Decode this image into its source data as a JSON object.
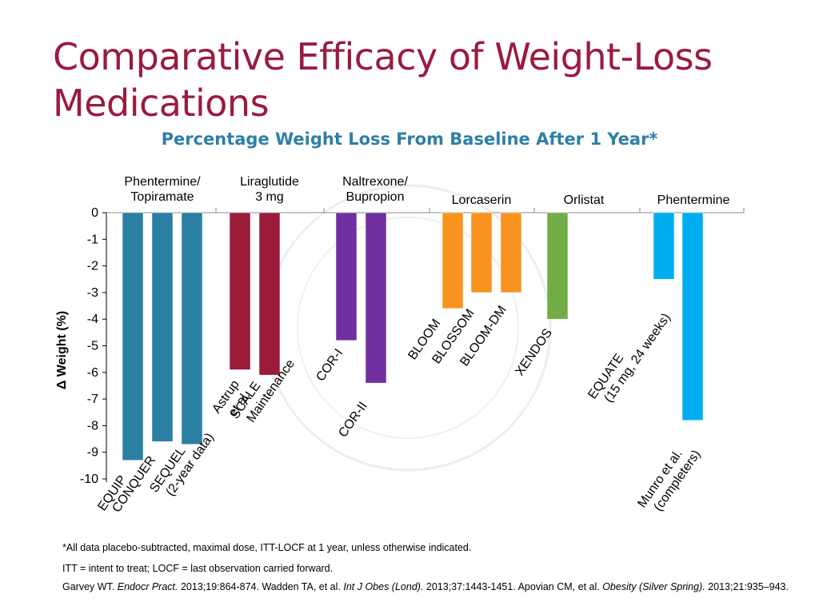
{
  "slide": {
    "title_line1": "Comparative Efficacy of Weight-Loss",
    "title_line2": "Medications"
  },
  "footnotes": {
    "note1": "*All data placebo-subtracted, maximal dose, ITT-LOCF at 1 year, unless otherwise indicated.",
    "note2": "ITT = intent to treat; LOCF = last observation carried forward."
  },
  "references": [
    {
      "text": "Garvey WT. ",
      "style": "normal"
    },
    {
      "text": "Endocr Pract.",
      "style": "italic"
    },
    {
      "text": " 2013;19:864-874.  Wadden TA, et al. ",
      "style": "normal"
    },
    {
      "text": "Int J Obes (Lond).",
      "style": "italic"
    },
    {
      "text": " 2013;37:1443-1451. Apovian CM, et al. ",
      "style": "normal"
    },
    {
      "text": "Obesity (Silver Spring).",
      "style": "italic"
    },
    {
      "text": " 2013;21:935–943.",
      "style": "normal"
    }
  ],
  "chart_data": {
    "type": "bar",
    "title": "Percentage Weight Loss From Baseline After 1 Year*",
    "ylabel": "Δ Weight (%)",
    "ylim": [
      -10,
      0
    ],
    "yticks": [
      "0",
      "-1",
      "-2",
      "-3",
      "-4",
      "-5",
      "-6",
      "-7",
      "-8",
      "-9",
      "-10"
    ],
    "grid": false,
    "groups": [
      {
        "name": "Phentermine/\nTopiramate",
        "color": "#2a7fa3",
        "bars": [
          {
            "label": "EQUIP",
            "value": -9.3
          },
          {
            "label": "CONQUER",
            "value": -8.6
          },
          {
            "label": "SEQUEL\n(2-year data)",
            "value": -8.7
          }
        ]
      },
      {
        "name": "Liraglutide\n3 mg",
        "color": "#9b1b3a",
        "bars": [
          {
            "label": "Astrup\net al.",
            "value": -5.9
          },
          {
            "label": "SCALE\nMaintenance",
            "value": -6.1
          }
        ]
      },
      {
        "name": "Naltrexone/\nBupropion",
        "color": "#7030a0",
        "bars": [
          {
            "label": "COR-I",
            "value": -4.8
          },
          {
            "label": "COR-II",
            "value": -6.4
          }
        ]
      },
      {
        "name": "Lorcaserin",
        "color": "#f7931e",
        "bars": [
          {
            "label": "BLOOM",
            "value": -3.6
          },
          {
            "label": "BLOSSOM",
            "value": -3.0
          },
          {
            "label": "BLOOM-DM",
            "value": -3.0
          }
        ]
      },
      {
        "name": "Orlistat",
        "color": "#70ad47",
        "bars": [
          {
            "label": "XENDOS",
            "value": -4.0
          }
        ]
      },
      {
        "name": "Phentermine",
        "color": "#00aeef",
        "bars": [
          {
            "label": "EQUATE\n(15 mg, 24 weeks)",
            "value": -2.5
          },
          {
            "label": "Munro et al.\n(completers)",
            "value": -7.8
          }
        ]
      }
    ]
  }
}
